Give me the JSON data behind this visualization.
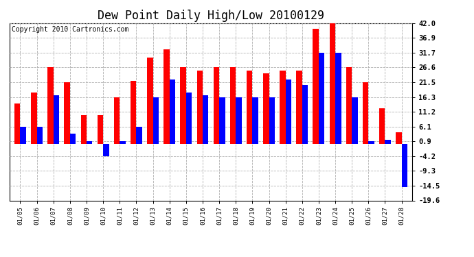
{
  "title": "Dew Point Daily High/Low 20100129",
  "copyright": "Copyright 2010 Cartronics.com",
  "dates": [
    "01/05",
    "01/06",
    "01/07",
    "01/08",
    "01/09",
    "01/10",
    "01/11",
    "01/12",
    "01/13",
    "01/14",
    "01/15",
    "01/16",
    "01/17",
    "01/18",
    "01/19",
    "01/20",
    "01/21",
    "01/22",
    "01/23",
    "01/24",
    "01/25",
    "01/26",
    "01/27",
    "01/28"
  ],
  "highs": [
    14.0,
    18.0,
    26.6,
    21.5,
    10.0,
    10.0,
    16.3,
    22.0,
    30.0,
    33.0,
    26.6,
    25.5,
    26.6,
    26.6,
    25.5,
    24.5,
    25.5,
    25.5,
    40.0,
    42.0,
    26.6,
    21.5,
    12.5,
    4.0
  ],
  "lows": [
    6.1,
    6.1,
    17.0,
    3.5,
    0.9,
    -4.2,
    0.9,
    6.1,
    16.3,
    22.5,
    18.0,
    17.0,
    16.3,
    16.3,
    16.3,
    16.3,
    22.5,
    20.5,
    31.7,
    31.7,
    16.3,
    0.9,
    1.5,
    -15.0
  ],
  "high_color": "#ff0000",
  "low_color": "#0000ff",
  "bg_color": "#ffffff",
  "grid_color": "#b0b0b0",
  "yticks": [
    42.0,
    36.9,
    31.7,
    26.6,
    21.5,
    16.3,
    11.2,
    6.1,
    0.9,
    -4.2,
    -9.3,
    -14.5,
    -19.6
  ],
  "ymin": -19.6,
  "ymax": 42.0,
  "title_fontsize": 12,
  "copyright_fontsize": 7,
  "bar_width": 0.35
}
